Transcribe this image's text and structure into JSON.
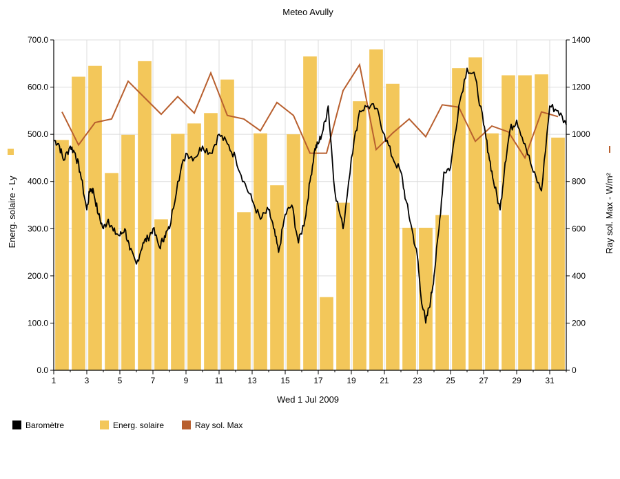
{
  "chart_data": {
    "type": "bar",
    "title": "Meteo  Avully",
    "xlabel": "Wed 1 Jul 2009",
    "ylabel_left": "Energ. solaire - Ly",
    "ylabel_right": "Ray sol. Max - W/m²",
    "ylim_left": [
      0,
      700
    ],
    "ylim_right": [
      0,
      1400
    ],
    "yticks_left": [
      "0.0",
      "100.0",
      "200.0",
      "300.0",
      "400.0",
      "500.0",
      "600.0",
      "700.0"
    ],
    "yticks_right": [
      "0",
      "200",
      "400",
      "600",
      "800",
      "1000",
      "1200",
      "1400"
    ],
    "xticks": [
      "1",
      "3",
      "5",
      "7",
      "9",
      "11",
      "13",
      "15",
      "17",
      "19",
      "21",
      "23",
      "25",
      "27",
      "29",
      "31"
    ],
    "xlim": [
      1,
      32
    ],
    "grid": true,
    "legend_position": "bottom-left",
    "series": [
      {
        "name": "Energ. solaire",
        "kind": "bar",
        "axis": "left",
        "color": "#f3c75a",
        "days": [
          1,
          2,
          3,
          4,
          5,
          6,
          7,
          8,
          9,
          10,
          11,
          12,
          13,
          14,
          15,
          16,
          17,
          18,
          19,
          20,
          21,
          22,
          23,
          24,
          25,
          26,
          27,
          28,
          29,
          30,
          31
        ],
        "values": [
          488,
          622,
          645,
          418,
          499,
          655,
          320,
          501,
          523,
          545,
          616,
          335,
          502,
          392,
          500,
          665,
          155,
          355,
          570,
          680,
          607,
          302,
          302,
          329,
          640,
          663,
          502,
          625,
          625,
          627,
          493
        ]
      },
      {
        "name": "Ray sol. Max",
        "kind": "line",
        "axis": "right",
        "color": "#b85f2e",
        "x": [
          1.5,
          2.5,
          3.5,
          4.5,
          5.5,
          6.5,
          7.5,
          8.5,
          9.5,
          10.5,
          11.5,
          12.5,
          13.5,
          14.5,
          15.5,
          16.5,
          17.5,
          18.5,
          19.5,
          20.5,
          21.5,
          22.5,
          23.5,
          24.5,
          25.5,
          26.5,
          27.5,
          28.5,
          29.5,
          30.5,
          31.5
        ],
        "values": [
          1095,
          955,
          1050,
          1065,
          1225,
          1155,
          1085,
          1160,
          1090,
          1260,
          1080,
          1065,
          1015,
          1135,
          1080,
          920,
          920,
          1185,
          1295,
          935,
          1005,
          1065,
          990,
          1125,
          1115,
          970,
          1035,
          1010,
          900,
          1095,
          1075
        ]
      },
      {
        "name": "Baromètre",
        "kind": "line",
        "axis": "left",
        "color": "#000000",
        "x": [
          1.0,
          1.3,
          1.6,
          2.0,
          2.3,
          2.6,
          3.0,
          3.2,
          3.4,
          3.7,
          4.0,
          4.3,
          4.6,
          5.0,
          5.3,
          5.6,
          6.0,
          6.4,
          6.7,
          7.0,
          7.4,
          7.7,
          8.0,
          8.5,
          9.0,
          9.5,
          10.0,
          10.5,
          11.0,
          11.5,
          12.0,
          12.5,
          13.0,
          13.5,
          14.0,
          14.3,
          14.6,
          15.0,
          15.4,
          15.8,
          16.2,
          16.5,
          16.8,
          17.0,
          17.3,
          17.6,
          18.0,
          18.5,
          19.0,
          19.5,
          20.0,
          20.5,
          21.0,
          21.5,
          22.0,
          22.3,
          22.6,
          23.0,
          23.2,
          23.5,
          23.8,
          24.0,
          24.3,
          24.6,
          25.0,
          25.5,
          26.0,
          26.5,
          27.0,
          27.3,
          27.6,
          28.0,
          28.3,
          28.6,
          29.0,
          29.5,
          30.0,
          30.5,
          31.0,
          31.5,
          32.0
        ],
        "values": [
          488,
          480,
          445,
          475,
          460,
          420,
          340,
          385,
          380,
          330,
          300,
          320,
          295,
          285,
          300,
          255,
          225,
          270,
          280,
          300,
          260,
          285,
          300,
          400,
          460,
          450,
          475,
          460,
          500,
          480,
          450,
          400,
          360,
          320,
          340,
          300,
          250,
          330,
          350,
          270,
          320,
          400,
          470,
          480,
          510,
          560,
          380,
          300,
          450,
          550,
          560,
          555,
          500,
          450,
          420,
          360,
          310,
          240,
          160,
          100,
          150,
          200,
          300,
          420,
          430,
          560,
          640,
          620,
          520,
          460,
          400,
          340,
          440,
          510,
          530,
          480,
          420,
          380,
          560,
          550,
          520
        ]
      }
    ]
  }
}
